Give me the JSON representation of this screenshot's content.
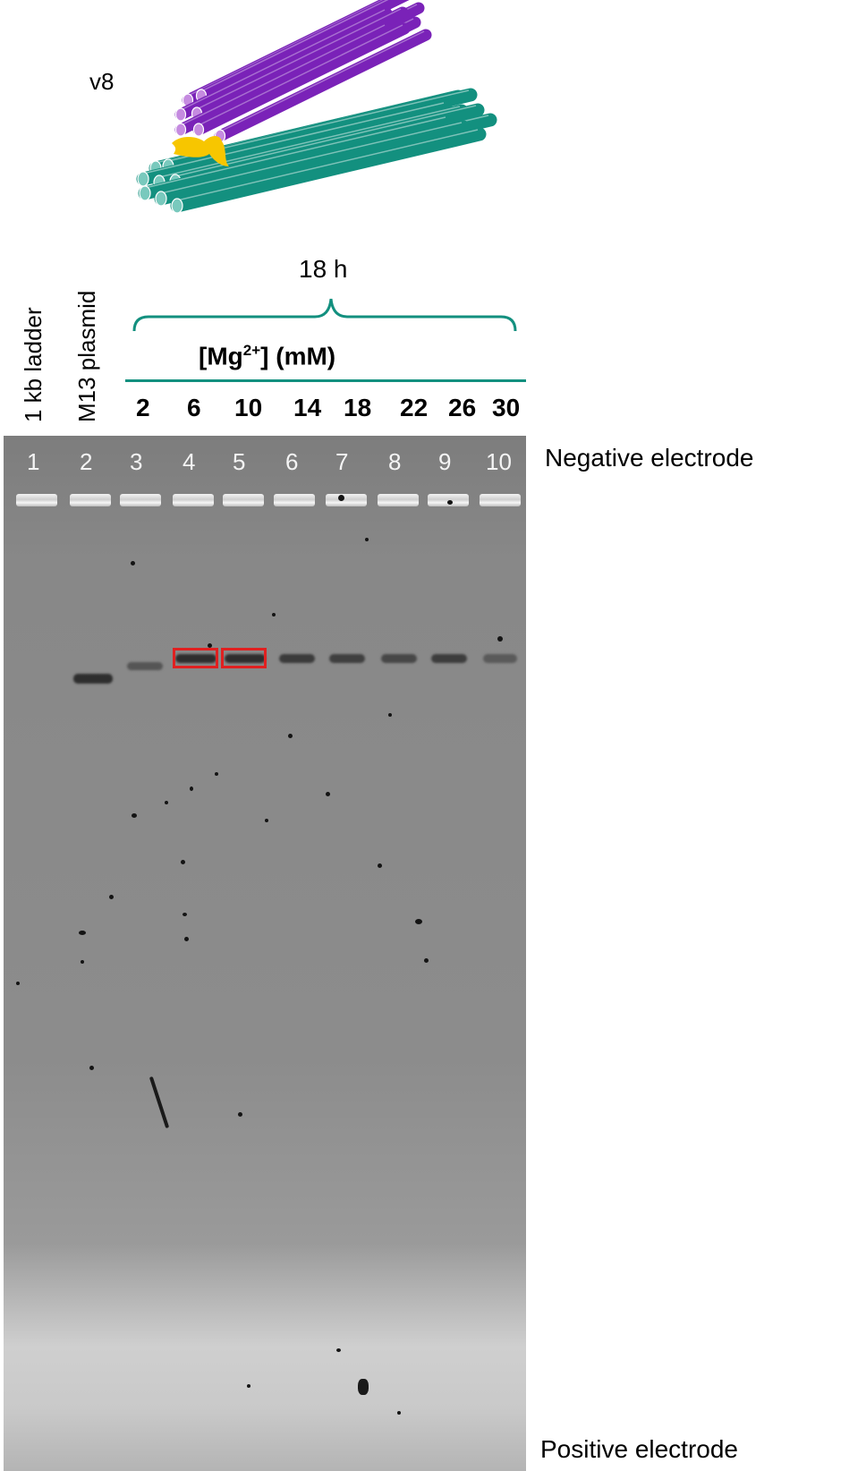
{
  "diagram": {
    "label": "v8",
    "colors": {
      "purple": "#7a22b8",
      "purple_end": "#c58be0",
      "teal": "#13907f",
      "teal_end": "#79c9bd",
      "yellow": "#f7c600"
    }
  },
  "lane_headers": {
    "ladder": "1 kb ladder",
    "plasmid": "M13 plasmid"
  },
  "condition": {
    "time": "18 h",
    "mg_base": "[Mg",
    "mg_sup": "2+",
    "mg_tail": "] (mM)",
    "concentrations": [
      "2",
      "6",
      "10",
      "14",
      "18",
      "22",
      "26",
      "30"
    ],
    "bracket_color": "#13907f"
  },
  "gel": {
    "lane_numbers": [
      "1",
      "2",
      "3",
      "4",
      "5",
      "6",
      "7",
      "8",
      "9",
      "10"
    ],
    "highlighted_lanes": [
      "4",
      "5"
    ],
    "highlight_color": "#e02020"
  },
  "electrodes": {
    "negative": "Negative electrode",
    "positive": "Positive electrode"
  }
}
